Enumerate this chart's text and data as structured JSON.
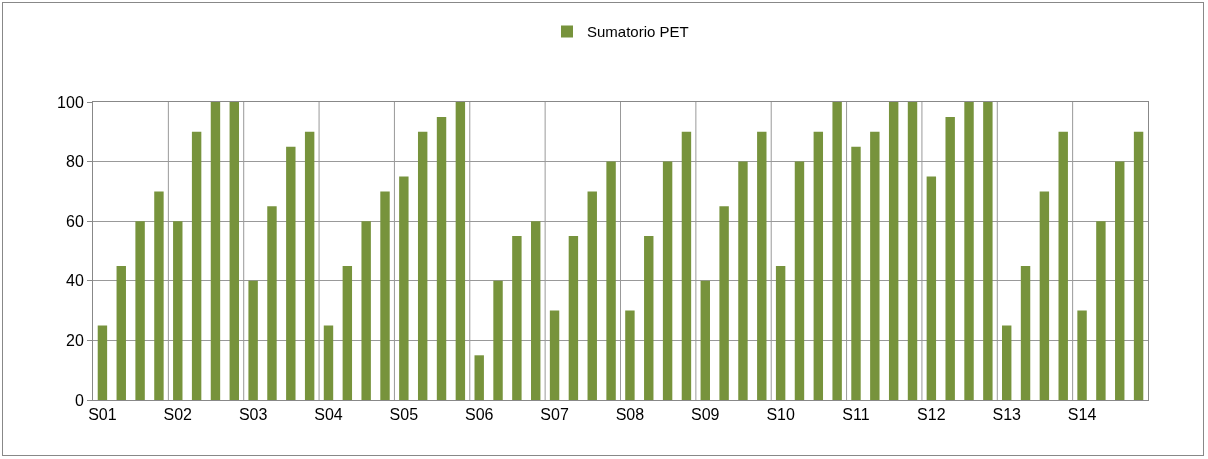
{
  "chart_data": {
    "type": "bar",
    "categories": [
      "S01",
      null,
      null,
      null,
      "S02",
      null,
      null,
      null,
      "S03",
      null,
      null,
      null,
      "S04",
      null,
      null,
      null,
      "S05",
      null,
      null,
      null,
      "S06",
      null,
      null,
      null,
      "S07",
      null,
      null,
      null,
      "S08",
      null,
      null,
      null,
      "S09",
      null,
      null,
      null,
      "S10",
      null,
      null,
      null,
      "S11",
      null,
      null,
      null,
      "S12",
      null,
      null,
      null,
      "S13",
      null,
      null,
      null,
      "S14",
      null,
      null,
      null
    ],
    "series": [
      {
        "name": "Sumatorio PET",
        "color": "#77933c",
        "values": [
          25,
          45,
          60,
          70,
          60,
          90,
          100,
          100,
          40,
          65,
          85,
          90,
          25,
          45,
          60,
          70,
          75,
          90,
          95,
          100,
          15,
          40,
          55,
          60,
          30,
          55,
          70,
          80,
          30,
          55,
          80,
          90,
          40,
          65,
          80,
          90,
          45,
          80,
          90,
          100,
          85,
          90,
          100,
          100,
          75,
          95,
          100,
          100,
          25,
          45,
          70,
          90,
          30,
          60,
          80,
          90
        ]
      }
    ],
    "ylim": [
      0,
      100
    ],
    "yticks": [
      0,
      20,
      40,
      60,
      80,
      100
    ],
    "grid": true,
    "legend": "top"
  }
}
